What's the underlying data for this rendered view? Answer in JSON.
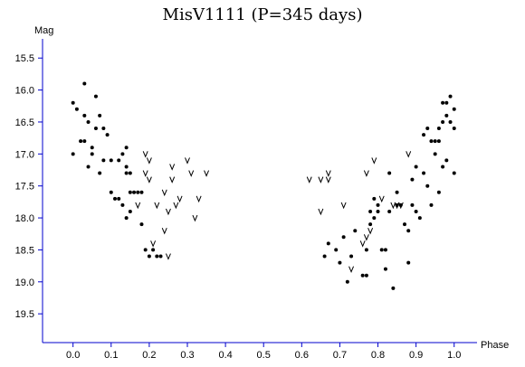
{
  "chart_data": {
    "type": "scatter",
    "title": "MisV1111 (P=345 days)",
    "xlabel": "Phase",
    "ylabel": "Mag",
    "xlim": [
      -0.08,
      1.06
    ],
    "ylim": [
      19.95,
      15.2
    ],
    "y_inverted": true,
    "grid": false,
    "xticks": [
      "0.0",
      "0.1",
      "0.2",
      "0.3",
      "0.4",
      "0.5",
      "0.6",
      "0.7",
      "0.8",
      "0.9",
      "1.0"
    ],
    "yticks": [
      "15.5",
      "16.0",
      "16.5",
      "17.0",
      "17.5",
      "18.0",
      "18.5",
      "19.0",
      "19.5"
    ],
    "series": [
      {
        "marker": "dot",
        "points": [
          [
            0.0,
            16.2
          ],
          [
            0.01,
            16.3
          ],
          [
            0.02,
            16.8
          ],
          [
            0.03,
            16.4
          ],
          [
            0.03,
            16.8
          ],
          [
            0.04,
            16.5
          ],
          [
            0.05,
            16.9
          ],
          [
            0.0,
            17.0
          ],
          [
            0.04,
            17.2
          ],
          [
            0.05,
            17.0
          ],
          [
            0.06,
            16.6
          ],
          [
            0.06,
            16.1
          ],
          [
            0.07,
            16.4
          ],
          [
            0.08,
            16.6
          ],
          [
            0.08,
            17.1
          ],
          [
            0.09,
            16.7
          ],
          [
            0.07,
            17.3
          ],
          [
            0.1,
            17.1
          ],
          [
            0.1,
            17.6
          ],
          [
            0.11,
            17.7
          ],
          [
            0.12,
            17.7
          ],
          [
            0.12,
            17.1
          ],
          [
            0.13,
            17.0
          ],
          [
            0.13,
            17.8
          ],
          [
            0.14,
            17.2
          ],
          [
            0.14,
            17.3
          ],
          [
            0.15,
            17.3
          ],
          [
            0.15,
            17.6
          ],
          [
            0.14,
            18.0
          ],
          [
            0.15,
            17.9
          ],
          [
            0.14,
            16.9
          ],
          [
            0.16,
            17.6
          ],
          [
            0.17,
            17.6
          ],
          [
            0.18,
            17.6
          ],
          [
            0.18,
            18.1
          ],
          [
            0.19,
            18.5
          ],
          [
            0.2,
            18.6
          ],
          [
            0.21,
            18.5
          ],
          [
            0.22,
            18.6
          ],
          [
            0.23,
            18.6
          ],
          [
            0.03,
            15.9
          ],
          [
            0.66,
            18.6
          ],
          [
            0.67,
            18.4
          ],
          [
            0.69,
            18.5
          ],
          [
            0.7,
            18.7
          ],
          [
            0.71,
            18.3
          ],
          [
            0.72,
            19.0
          ],
          [
            0.73,
            18.6
          ],
          [
            0.74,
            18.2
          ],
          [
            0.76,
            18.9
          ],
          [
            0.77,
            18.9
          ],
          [
            0.77,
            18.5
          ],
          [
            0.78,
            17.9
          ],
          [
            0.78,
            18.1
          ],
          [
            0.79,
            17.7
          ],
          [
            0.79,
            18.0
          ],
          [
            0.8,
            17.9
          ],
          [
            0.8,
            17.8
          ],
          [
            0.81,
            18.5
          ],
          [
            0.82,
            18.5
          ],
          [
            0.82,
            18.8
          ],
          [
            0.83,
            17.3
          ],
          [
            0.83,
            17.9
          ],
          [
            0.84,
            19.1
          ],
          [
            0.85,
            17.8
          ],
          [
            0.85,
            17.6
          ],
          [
            0.86,
            17.8
          ],
          [
            0.87,
            18.1
          ],
          [
            0.88,
            18.2
          ],
          [
            0.88,
            18.7
          ],
          [
            0.89,
            17.4
          ],
          [
            0.89,
            17.8
          ],
          [
            0.9,
            17.2
          ],
          [
            0.9,
            17.9
          ],
          [
            0.91,
            18.0
          ],
          [
            0.92,
            17.3
          ],
          [
            0.92,
            16.7
          ],
          [
            0.93,
            16.6
          ],
          [
            0.93,
            17.5
          ],
          [
            0.94,
            16.8
          ],
          [
            0.94,
            17.8
          ],
          [
            0.95,
            16.8
          ],
          [
            0.96,
            16.8
          ],
          [
            0.96,
            17.6
          ],
          [
            0.97,
            16.2
          ],
          [
            0.97,
            16.5
          ],
          [
            0.98,
            16.2
          ],
          [
            0.98,
            16.4
          ],
          [
            0.98,
            17.1
          ],
          [
            0.99,
            16.1
          ],
          [
            0.99,
            16.5
          ],
          [
            1.0,
            16.3
          ],
          [
            1.0,
            16.6
          ],
          [
            1.0,
            17.3
          ],
          [
            0.96,
            16.6
          ],
          [
            0.97,
            17.2
          ],
          [
            0.95,
            17.0
          ]
        ]
      },
      {
        "marker": "v",
        "points": [
          [
            0.19,
            17.0
          ],
          [
            0.2,
            17.1
          ],
          [
            0.2,
            17.4
          ],
          [
            0.19,
            17.3
          ],
          [
            0.17,
            17.8
          ],
          [
            0.22,
            17.8
          ],
          [
            0.24,
            18.2
          ],
          [
            0.24,
            17.6
          ],
          [
            0.25,
            17.9
          ],
          [
            0.25,
            18.6
          ],
          [
            0.26,
            17.2
          ],
          [
            0.27,
            17.8
          ],
          [
            0.28,
            17.7
          ],
          [
            0.3,
            17.1
          ],
          [
            0.31,
            17.3
          ],
          [
            0.32,
            18.0
          ],
          [
            0.33,
            17.7
          ],
          [
            0.35,
            17.3
          ],
          [
            0.26,
            17.4
          ],
          [
            0.21,
            18.4
          ],
          [
            0.62,
            17.4
          ],
          [
            0.65,
            17.4
          ],
          [
            0.65,
            17.9
          ],
          [
            0.67,
            17.3
          ],
          [
            0.67,
            17.4
          ],
          [
            0.71,
            17.8
          ],
          [
            0.73,
            18.8
          ],
          [
            0.76,
            18.4
          ],
          [
            0.77,
            17.3
          ],
          [
            0.77,
            18.3
          ],
          [
            0.78,
            18.2
          ],
          [
            0.79,
            17.1
          ],
          [
            0.81,
            17.7
          ],
          [
            0.84,
            17.8
          ],
          [
            0.85,
            17.8
          ],
          [
            0.86,
            17.8
          ],
          [
            0.88,
            17.0
          ]
        ]
      }
    ]
  }
}
